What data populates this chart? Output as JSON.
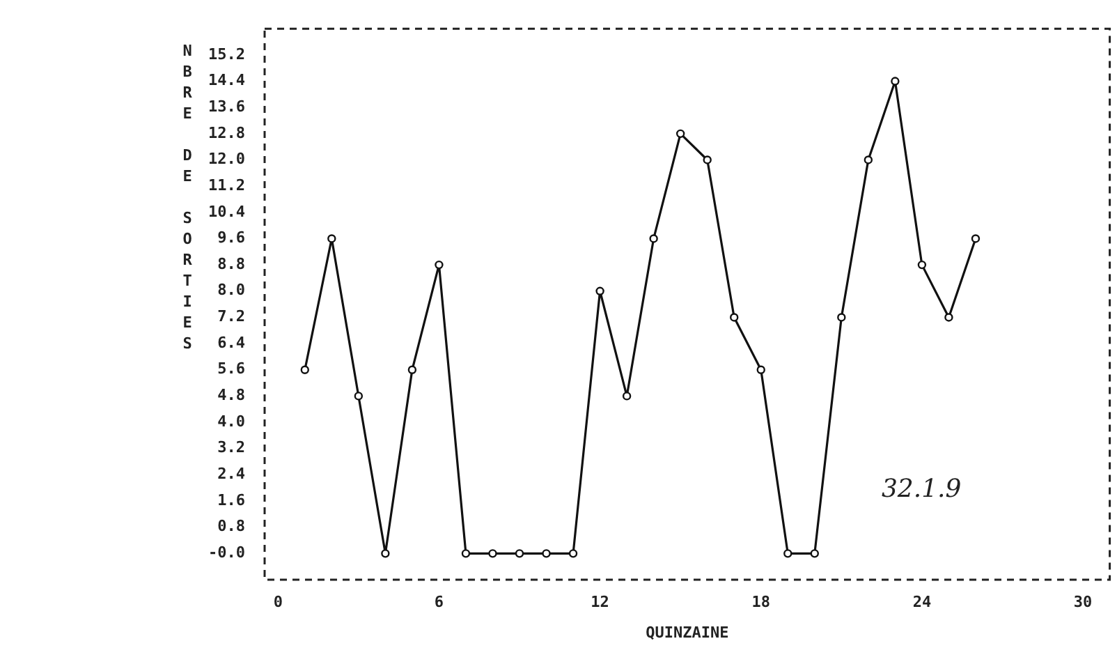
{
  "chart_data": {
    "type": "line",
    "xlabel": "QUINZAINE",
    "ylabel": "NBRE DE SORTIES",
    "x": [
      1,
      2,
      3,
      4,
      5,
      6,
      7,
      8,
      9,
      10,
      11,
      12,
      13,
      14,
      15,
      16,
      17,
      18,
      19,
      20,
      21,
      22,
      23,
      24,
      25,
      26
    ],
    "series": [
      {
        "color": "#111111",
        "values": [
          5.6,
          9.6,
          4.8,
          0,
          5.6,
          8.8,
          0,
          0,
          0,
          0,
          0,
          8.0,
          4.8,
          9.6,
          12.8,
          12.0,
          7.2,
          5.6,
          0,
          0,
          7.2,
          12.0,
          14.4,
          8.8,
          7.2,
          9.6
        ]
      }
    ],
    "xlim": [
      -0.5,
      31
    ],
    "xticks": [
      0,
      6,
      12,
      18,
      24,
      30
    ],
    "ylim": [
      -0.8,
      16.0
    ],
    "yticks": [
      {
        "value": 0,
        "label": "-0.0"
      },
      0.8,
      1.6,
      2.4,
      3.2,
      {
        "value": 4,
        "label": "4.0"
      },
      4.8,
      5.6,
      6.4,
      7.2,
      {
        "value": 8,
        "label": "8.0"
      },
      8.8,
      9.6,
      10.4,
      11.2,
      {
        "value": 12,
        "label": "12.0"
      },
      12.8,
      13.6,
      14.4,
      15.2
    ],
    "annotations": [
      "32.1.9"
    ],
    "grid": false,
    "legend": false,
    "marker": "circle",
    "line_style": "solid"
  }
}
